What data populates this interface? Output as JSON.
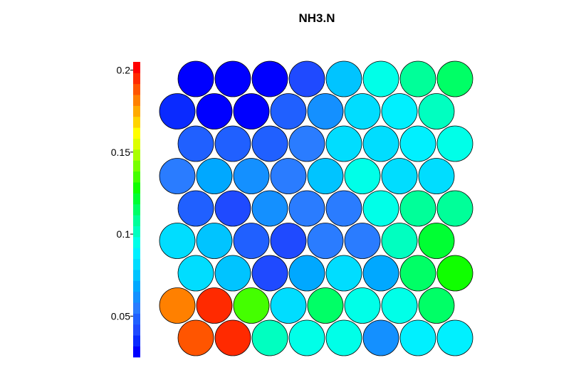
{
  "chart_data": {
    "type": "heatmap",
    "title": "NH3.N",
    "layout": "hexagonal",
    "rows": 9,
    "cols": 8,
    "color_scale": {
      "min": 0.025,
      "max": 0.205,
      "ticks": [
        0.05,
        0.1,
        0.15,
        0.2
      ],
      "tick_labels": [
        "0.05",
        "0.1",
        "0.15",
        "0.2"
      ],
      "colors": [
        "#0000ff",
        "#0a2aff",
        "#1f4aff",
        "#2060ff",
        "#2a7cff",
        "#1490ff",
        "#00a8ff",
        "#00c4ff",
        "#00ddff",
        "#00f0ff",
        "#00ffe8",
        "#00ffc0",
        "#00ff99",
        "#00ff66",
        "#00ff33",
        "#10ff00",
        "#44ff00",
        "#77ff00",
        "#aaff00",
        "#ddff00",
        "#ffff00",
        "#ffd400",
        "#ffaa00",
        "#ff8000",
        "#ff5500",
        "#ff2a00",
        "#ff0000"
      ]
    },
    "values": [
      [
        0.028,
        0.026,
        0.026,
        0.042,
        0.075,
        0.095,
        0.11,
        0.112
      ],
      [
        0.032,
        0.03,
        0.03,
        0.05,
        0.062,
        0.082,
        0.088,
        0.104
      ],
      [
        0.046,
        0.046,
        0.046,
        0.056,
        0.084,
        0.082,
        0.09,
        0.097
      ],
      [
        0.054,
        0.066,
        0.062,
        0.058,
        0.072,
        0.092,
        0.084,
        0.082
      ],
      [
        0.048,
        0.04,
        0.062,
        0.054,
        0.058,
        0.095,
        0.108,
        0.107
      ],
      [
        0.082,
        0.072,
        0.046,
        0.042,
        0.058,
        0.054,
        0.104,
        0.124
      ],
      [
        0.084,
        0.072,
        0.044,
        0.07,
        0.082,
        0.07,
        0.116,
        0.127
      ],
      [
        0.182,
        0.195,
        0.135,
        0.084,
        0.116,
        0.094,
        0.096,
        0.112
      ],
      [
        0.188,
        0.196,
        0.1,
        0.095,
        0.094,
        0.064,
        0.088,
        0.09
      ]
    ]
  }
}
